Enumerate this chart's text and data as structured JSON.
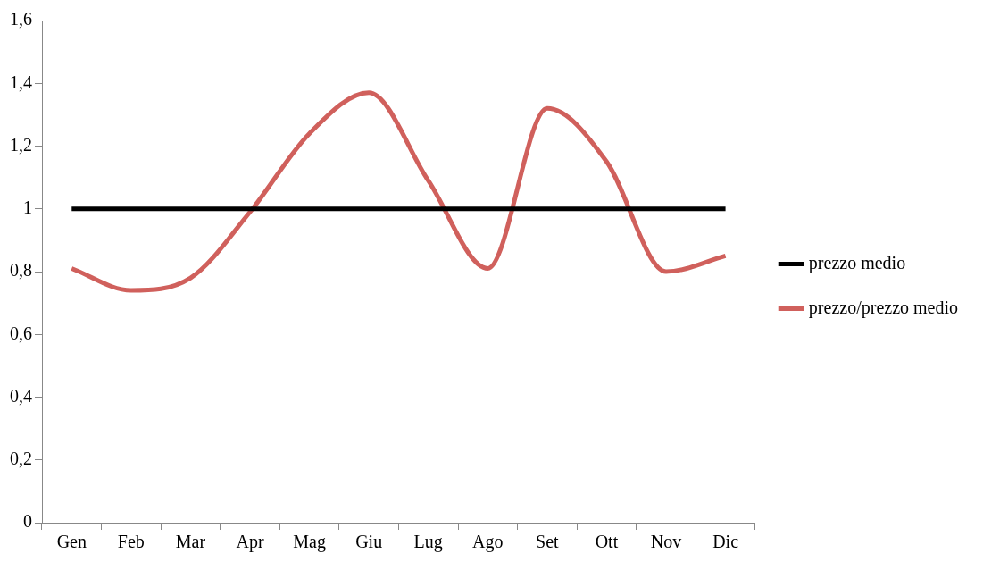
{
  "chart_data": {
    "type": "line",
    "categories": [
      "Gen",
      "Feb",
      "Mar",
      "Apr",
      "Mag",
      "Giu",
      "Lug",
      "Ago",
      "Set",
      "Ott",
      "Nov",
      "Dic"
    ],
    "series": [
      {
        "name": "prezzo medio",
        "color": "#000000",
        "values": [
          1,
          1,
          1,
          1,
          1,
          1,
          1,
          1,
          1,
          1,
          1,
          1
        ]
      },
      {
        "name": "prezzo/prezzo medio",
        "color": "#d0605c",
        "values": [
          0.81,
          0.74,
          0.78,
          0.99,
          1.24,
          1.37,
          1.09,
          0.81,
          1.32,
          1.15,
          0.8,
          0.85
        ]
      }
    ],
    "ylim": [
      0,
      1.6
    ],
    "yticks": [
      0,
      {
        "value": 0.2,
        "label": "0,2"
      },
      {
        "value": 0.4,
        "label": "0,4"
      },
      {
        "value": 0.6,
        "label": "0,6"
      },
      {
        "value": 0.8,
        "label": "0,8"
      },
      1,
      {
        "value": 1.2,
        "label": "1,2"
      },
      {
        "value": 1.4,
        "label": "1,4"
      },
      {
        "value": 1.6,
        "label": "1,6"
      }
    ],
    "grid": false,
    "legend": "right",
    "marker": "none",
    "line_style": "solid"
  }
}
